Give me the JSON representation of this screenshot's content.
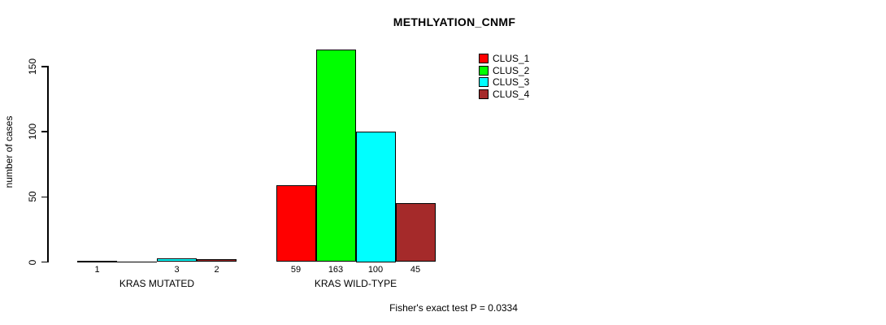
{
  "title": "METHLYATION_CNMF",
  "footer": "Fisher's exact test P = 0.0334",
  "y_axis": {
    "label": "number of cases",
    "ticks": [
      "0",
      "50",
      "100",
      "150"
    ]
  },
  "x_axis": {
    "groups": [
      "KRAS MUTATED",
      "KRAS WILD-TYPE"
    ]
  },
  "legend": {
    "items": [
      {
        "label": "CLUS_1",
        "color": "#ff0000"
      },
      {
        "label": "CLUS_2",
        "color": "#00ff00"
      },
      {
        "label": "CLUS_3",
        "color": "#00ffff"
      },
      {
        "label": "CLUS_4",
        "color": "#a52a2a"
      }
    ]
  },
  "chart_data": {
    "type": "bar",
    "title": "METHLYATION_CNMF",
    "xlabel": "",
    "ylabel": "number of cases",
    "ylim": [
      0,
      170
    ],
    "yticks": [
      0,
      50,
      100,
      150
    ],
    "grid": false,
    "legend_position": "top-right",
    "categories": [
      "KRAS MUTATED",
      "KRAS WILD-TYPE"
    ],
    "series": [
      {
        "name": "CLUS_1",
        "color": "#ff0000",
        "values": [
          1,
          59
        ]
      },
      {
        "name": "CLUS_2",
        "color": "#00ff00",
        "values": [
          0,
          163
        ]
      },
      {
        "name": "CLUS_3",
        "color": "#00ffff",
        "values": [
          3,
          100
        ]
      },
      {
        "name": "CLUS_4",
        "color": "#a52a2a",
        "values": [
          2,
          45
        ]
      }
    ],
    "bar_value_labels": [
      [
        "1",
        "",
        "3",
        "2"
      ],
      [
        "59",
        "163",
        "100",
        "45"
      ]
    ],
    "annotation": "Fisher's exact test P = 0.0334"
  }
}
